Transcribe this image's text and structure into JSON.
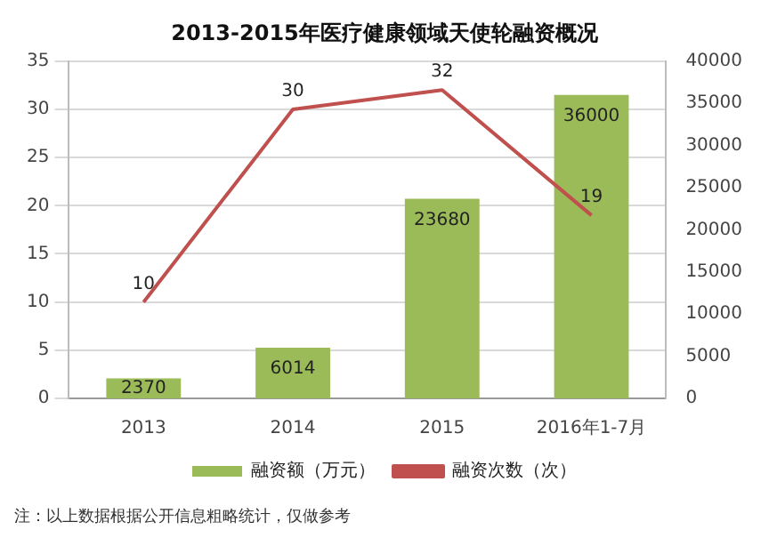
{
  "chart_data": {
    "type": "bar",
    "title": "2013-2015年医疗健康领域天使轮融资概况",
    "categories": [
      "2013",
      "2014",
      "2015",
      "2016年1-7月"
    ],
    "series": [
      {
        "name": "融资额（万元）",
        "axis": "y2",
        "color": "#9bbb59",
        "values": [
          2370,
          6014,
          23680,
          36000
        ]
      },
      {
        "name": "融资次数（次）",
        "type": "line",
        "axis": "y",
        "color": "#c0504d",
        "values": [
          10,
          30,
          32,
          19
        ]
      }
    ],
    "ylim": [
      0,
      35
    ],
    "yticks": [
      0,
      5,
      10,
      15,
      20,
      25,
      30,
      35
    ],
    "y2lim": [
      0,
      40000
    ],
    "y2ticks": [
      0,
      5000,
      10000,
      15000,
      20000,
      25000,
      30000,
      35000,
      40000
    ],
    "grid": "y",
    "legend": "bottom",
    "marker": "none",
    "data_labels": true,
    "annotations": [
      "注：以上数据根据公开信息粗略统计，仅做参考"
    ]
  }
}
